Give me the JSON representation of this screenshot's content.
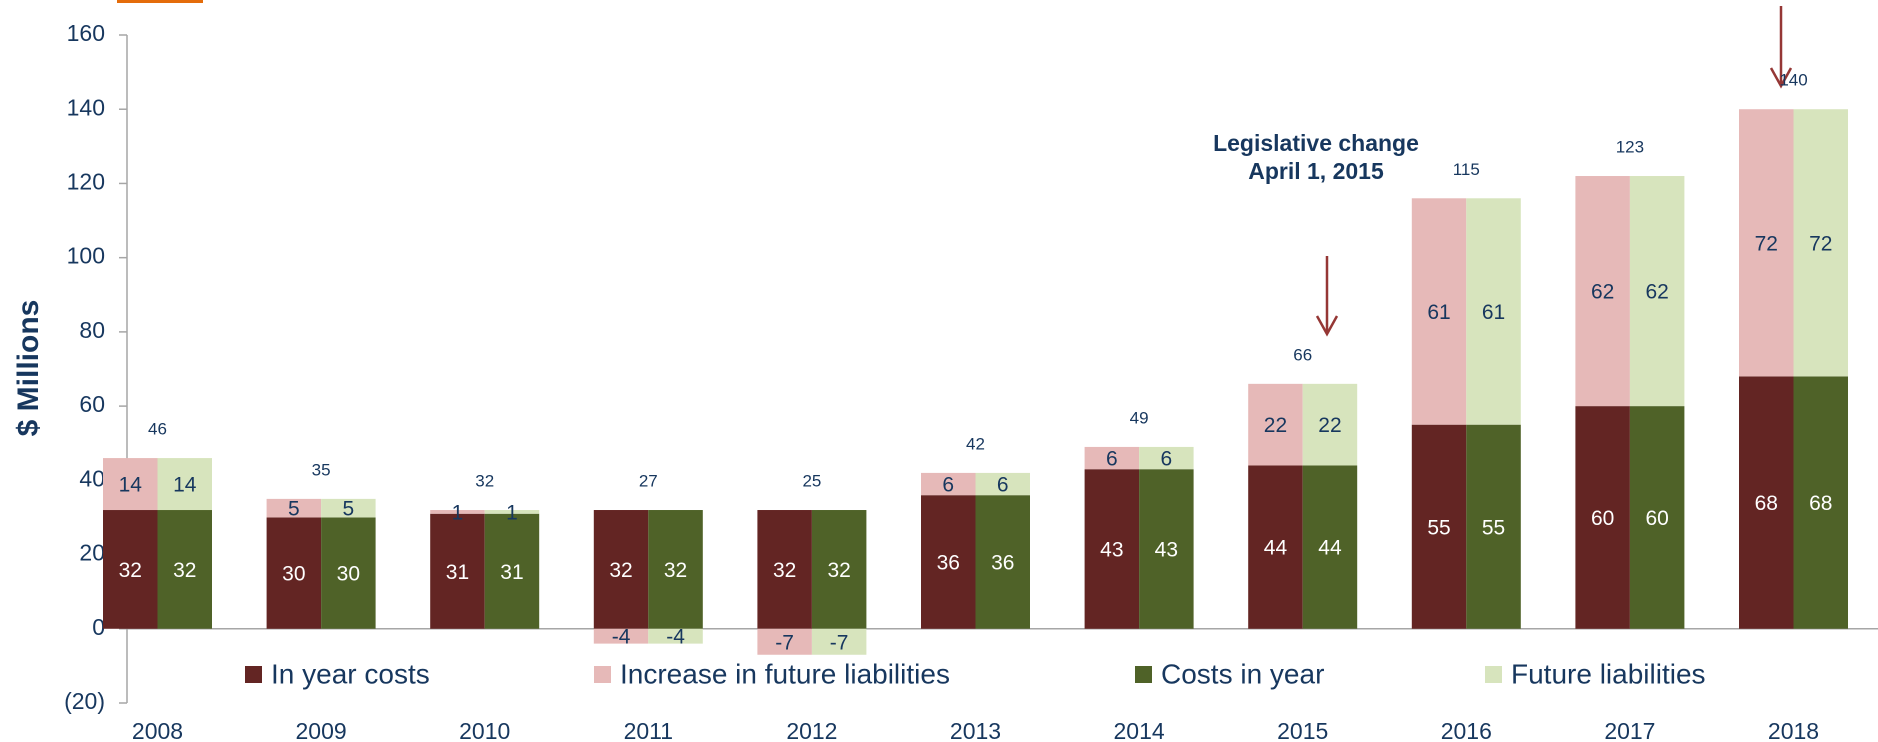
{
  "chart_data": {
    "type": "bar",
    "y_label": "$ Millions",
    "categories": [
      "2008",
      "2009",
      "2010",
      "2011",
      "2012",
      "2013",
      "2014",
      "2015",
      "2016",
      "2017",
      "2018"
    ],
    "series": [
      {
        "name": "In year costs",
        "color": "#632523",
        "stack": "left",
        "values": [
          32,
          30,
          31,
          32,
          32,
          36,
          43,
          44,
          55,
          60,
          68
        ]
      },
      {
        "name": "Increase in future liabilities",
        "color": "#e6b9b8",
        "stack": "left",
        "values": [
          14,
          5,
          1,
          -4,
          -7,
          6,
          6,
          22,
          61,
          62,
          72
        ]
      },
      {
        "name": "Costs in year",
        "color": "#4f6228",
        "stack": "right",
        "values": [
          32,
          30,
          31,
          32,
          32,
          36,
          43,
          44,
          55,
          60,
          68
        ]
      },
      {
        "name": "Future liabilities",
        "color": "#d7e4bd",
        "stack": "right",
        "values": [
          14,
          5,
          1,
          -4,
          -7,
          6,
          6,
          22,
          61,
          62,
          72
        ]
      }
    ],
    "totals": [
      46,
      35,
      32,
      27,
      25,
      42,
      49,
      66,
      115,
      123,
      140
    ],
    "annotations": [
      "Legislative change",
      "April 1, 2015"
    ],
    "ylim": [
      -20,
      160
    ],
    "yticks": [
      {
        "value": -20,
        "label": "(20)"
      },
      0,
      20,
      40,
      60,
      80,
      100,
      120,
      140,
      160
    ]
  }
}
